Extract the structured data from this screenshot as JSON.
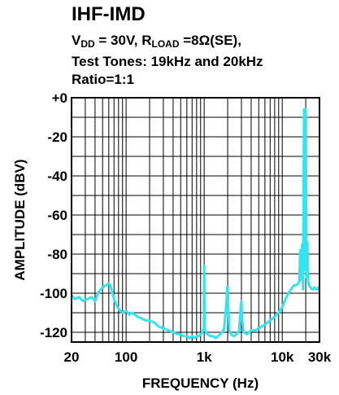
{
  "chart_data": {
    "type": "line",
    "title": "IHF-IMD",
    "subtitle": {
      "vdd_prefix": "V",
      "vdd_sub": "DD",
      "vdd_mid": " = 30V, R",
      "rload_sub": "LOAD",
      "rload_suffix": " =8Ω(SE),",
      "line2": "Test Tones: 19kHz and 20kHz",
      "line3": "Ratio=1:1"
    },
    "xlabel": "FREQUENCY (Hz)",
    "ylabel": "AMPLITUDE (dBV)",
    "x_scale": "log",
    "xlim": [
      20,
      30000
    ],
    "ylim": [
      -125,
      0
    ],
    "grid": true,
    "x_tick_labels": [
      {
        "value": 20,
        "label": "20"
      },
      {
        "value": 100,
        "label": "100"
      },
      {
        "value": 1000,
        "label": "1k"
      },
      {
        "value": 10000,
        "label": "10k"
      },
      {
        "value": 30000,
        "label": "30k"
      }
    ],
    "y_tick_labels": [
      {
        "value": 0,
        "label": "+0"
      },
      {
        "value": -20,
        "label": "-20"
      },
      {
        "value": -40,
        "label": "-40"
      },
      {
        "value": -60,
        "label": "-60"
      },
      {
        "value": -80,
        "label": "-80"
      },
      {
        "value": -100,
        "label": "-100"
      },
      {
        "value": -120,
        "label": "-120"
      }
    ],
    "series_color": "#33e5ef",
    "series": [
      {
        "x": [
          20,
          22,
          25,
          28,
          32,
          36,
          40,
          45,
          50,
          55,
          60,
          63,
          66,
          70,
          75,
          80,
          90,
          100,
          110,
          120,
          140,
          160,
          180,
          200,
          230,
          260,
          300,
          350,
          400,
          450,
          500,
          550,
          600,
          650,
          700,
          750,
          800,
          850,
          900,
          950,
          990,
          1000,
          1010,
          1050,
          1100,
          1200,
          1300,
          1400,
          1500,
          1600,
          1700,
          1800,
          1900,
          1980,
          2000,
          2020,
          2100,
          2200,
          2400,
          2600,
          2800,
          2960,
          3000,
          3040,
          3200,
          3500,
          3800,
          4000,
          4500,
          5000,
          5500,
          6000,
          7000,
          8000,
          9000,
          10000,
          11000,
          12000,
          13000,
          14000,
          15000,
          16000,
          16500,
          17000,
          17500,
          18000,
          18500,
          19000,
          19500,
          20000,
          20500,
          21000,
          21500,
          22000,
          23000,
          24000,
          25000,
          26000,
          27000,
          28000,
          29000,
          30000
        ],
        "values": [
          -101,
          -103,
          -102,
          -104,
          -103,
          -102,
          -104,
          -99,
          -97,
          -96,
          -95,
          -96,
          -99,
          -103,
          -106,
          -108,
          -110,
          -109,
          -111,
          -110,
          -112,
          -113,
          -114,
          -114,
          -115,
          -117,
          -118,
          -119,
          -120,
          -121,
          -121,
          -122,
          -122,
          -123,
          -122,
          -123,
          -122,
          -122,
          -121,
          -120,
          -118,
          -86,
          -118,
          -120,
          -121,
          -122,
          -122,
          -123,
          -122,
          -121,
          -120,
          -118,
          -108,
          -97,
          -97,
          -105,
          -119,
          -121,
          -122,
          -121,
          -119,
          -106,
          -104,
          -112,
          -120,
          -121,
          -120,
          -119,
          -119,
          -118,
          -117,
          -116,
          -114,
          -112,
          -110,
          -107,
          -103,
          -100,
          -98,
          -96,
          -96,
          -95,
          -94,
          -78,
          -93,
          -75,
          -98,
          -6,
          -88,
          -6,
          -92,
          -74,
          -94,
          -96,
          -97,
          -98,
          -98,
          -97,
          -98,
          -98,
          -97,
          -99
        ]
      }
    ]
  }
}
